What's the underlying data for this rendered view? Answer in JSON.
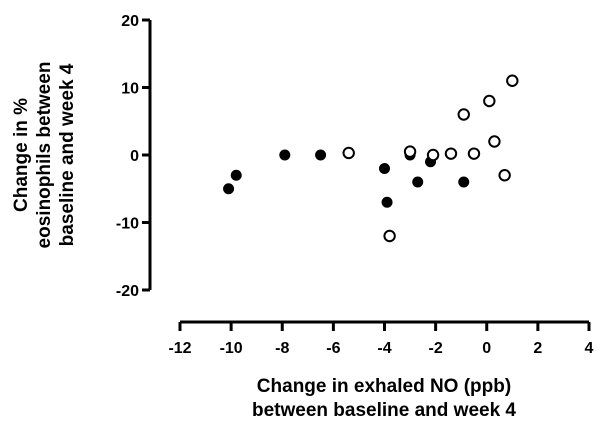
{
  "chart_data": {
    "type": "scatter",
    "xlabel_lines": [
      "Change in exhaled NO (ppb)",
      "between baseline and week 4"
    ],
    "ylabel_lines": [
      "Change in %",
      "eosinophils between",
      "baseline and week 4"
    ],
    "xlim": [
      -12,
      4
    ],
    "ylim": [
      -20,
      20
    ],
    "x_ticks": [
      -12,
      -10,
      -8,
      -6,
      -4,
      -2,
      0,
      2,
      4
    ],
    "y_ticks": [
      -20,
      -10,
      0,
      10,
      20
    ],
    "grid": false,
    "legend": "none",
    "series": [
      {
        "marker": "filled-circle",
        "color": "#000000",
        "points": [
          [
            -10.1,
            -5
          ],
          [
            -9.8,
            -3
          ],
          [
            -7.9,
            0
          ],
          [
            -6.5,
            0
          ],
          [
            -4.0,
            -2
          ],
          [
            -3.9,
            -7
          ],
          [
            -3.0,
            0
          ],
          [
            -2.7,
            -4
          ],
          [
            -2.2,
            -1
          ],
          [
            -0.9,
            -4
          ]
        ]
      },
      {
        "marker": "open-circle",
        "color": "#000000",
        "points": [
          [
            -5.4,
            0.3
          ],
          [
            -3.0,
            0.5
          ],
          [
            -3.8,
            -12
          ],
          [
            -2.1,
            0
          ],
          [
            -1.4,
            0.2
          ],
          [
            -0.9,
            6
          ],
          [
            -0.5,
            0.2
          ],
          [
            0.1,
            8
          ],
          [
            0.3,
            2
          ],
          [
            0.7,
            -3
          ],
          [
            1.0,
            11
          ]
        ]
      }
    ]
  }
}
